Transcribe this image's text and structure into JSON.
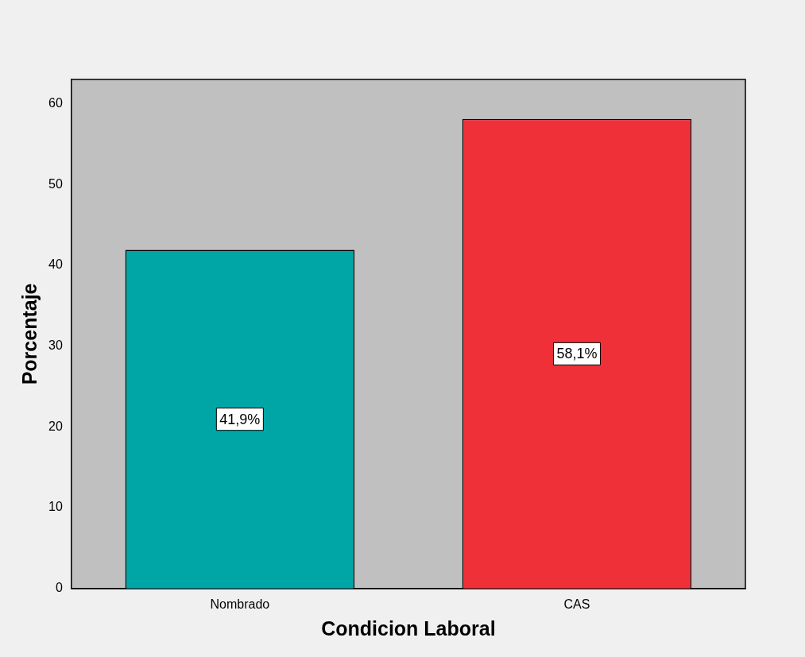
{
  "chart_data": {
    "type": "bar",
    "xlabel": "Condicion Laboral",
    "ylabel": "Porcentaje",
    "categories": [
      "Nombrado",
      "CAS"
    ],
    "values": [
      41.9,
      58.1
    ],
    "colors": [
      "#00a6a6",
      "#f03039"
    ],
    "value_labels": [
      "41,9%",
      "58,1%"
    ],
    "ylim": [
      0,
      63
    ],
    "yticks": [
      0,
      10,
      20,
      30,
      40,
      50,
      60
    ],
    "grid": false,
    "legend": false
  }
}
